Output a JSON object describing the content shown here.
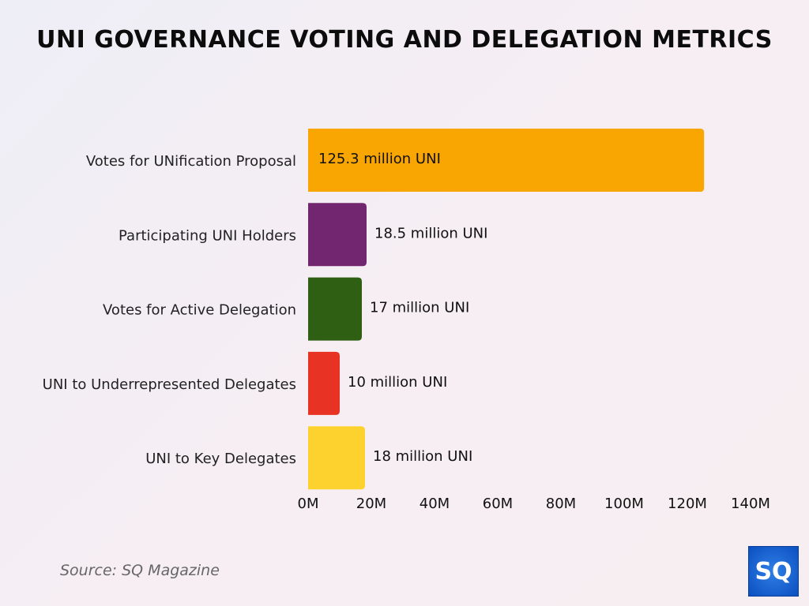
{
  "chart_data": {
    "type": "bar",
    "orientation": "horizontal",
    "title": "UNI GOVERNANCE VOTING AND DELEGATION METRICS",
    "categories": [
      "Votes for UNification Proposal",
      "Participating UNI Holders",
      "Votes for Active Delegation",
      "UNI to Underrepresented Delegates",
      "UNI to Key Delegates"
    ],
    "values": [
      125.3,
      18.5,
      17,
      10,
      18
    ],
    "data_labels": [
      "125.3 million UNI",
      "18.5 million UNI",
      "17 million UNI",
      "10 million UNI",
      "18 million UNI"
    ],
    "colors": [
      "#f9a602",
      "#72266f",
      "#2f5f12",
      "#e83224",
      "#fdd22f"
    ],
    "xlim": [
      0,
      140
    ],
    "x_ticks": [
      0,
      20,
      40,
      60,
      80,
      100,
      120,
      140
    ],
    "x_tick_labels": [
      "0M",
      "20M",
      "40M",
      "60M",
      "80M",
      "100M",
      "120M",
      "140M"
    ],
    "xlabel": "",
    "ylabel": "",
    "grid": false
  },
  "source": "Source: SQ Magazine",
  "logo": "SQ"
}
